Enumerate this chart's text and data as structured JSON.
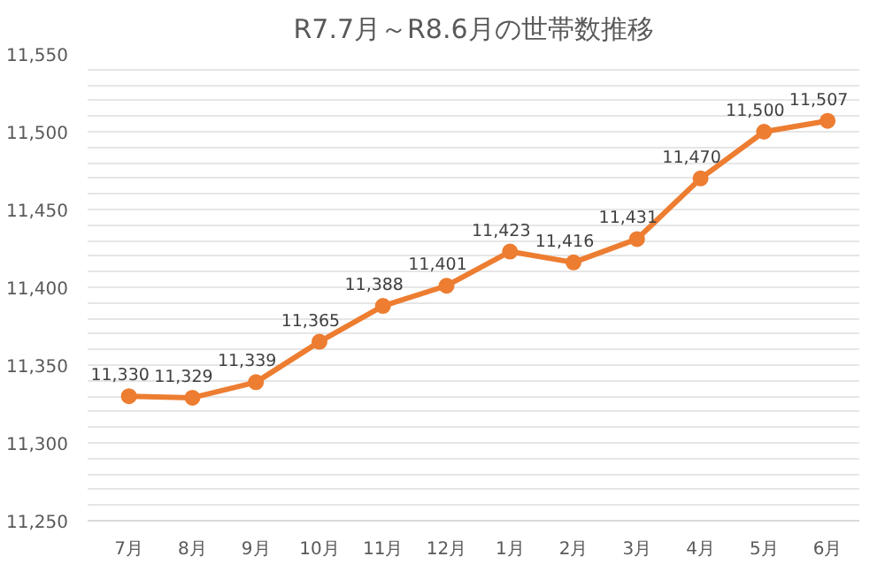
{
  "chart_data": {
    "type": "line",
    "title": "R7.7月～R8.6月の世帯数推移",
    "categories": [
      "7月",
      "8月",
      "9月",
      "10月",
      "11月",
      "12月",
      "1月",
      "2月",
      "3月",
      "4月",
      "5月",
      "6月"
    ],
    "series": [
      {
        "color": "#ed7d31",
        "values": [
          11330,
          11329,
          11339,
          11365,
          11388,
          11401,
          11423,
          11416,
          11431,
          11470,
          11500,
          11507
        ],
        "value_labels": [
          "11,330",
          "11,329",
          "11,339",
          "11,365",
          "11,388",
          "11,401",
          "11,423",
          "11,416",
          "11,431",
          "11,470",
          "11,500",
          "11,507"
        ]
      }
    ],
    "ylim": [
      11250,
      11550
    ],
    "yticks": [
      {
        "value": 11250,
        "label": "11,250"
      },
      {
        "value": 11260,
        "label": null
      },
      {
        "value": 11270,
        "label": null
      },
      {
        "value": 11280,
        "label": null
      },
      {
        "value": 11290,
        "label": null
      },
      {
        "value": 11300,
        "label": "11,300"
      },
      {
        "value": 11310,
        "label": null
      },
      {
        "value": 11320,
        "label": null
      },
      {
        "value": 11330,
        "label": null
      },
      {
        "value": 11340,
        "label": null
      },
      {
        "value": 11350,
        "label": "11,350"
      },
      {
        "value": 11360,
        "label": null
      },
      {
        "value": 11370,
        "label": null
      },
      {
        "value": 11380,
        "label": null
      },
      {
        "value": 11390,
        "label": null
      },
      {
        "value": 11400,
        "label": "11,400"
      },
      {
        "value": 11410,
        "label": null
      },
      {
        "value": 11420,
        "label": null
      },
      {
        "value": 11430,
        "label": null
      },
      {
        "value": 11440,
        "label": null
      },
      {
        "value": 11450,
        "label": "11,450"
      },
      {
        "value": 11460,
        "label": null
      },
      {
        "value": 11470,
        "label": null
      },
      {
        "value": 11480,
        "label": null
      },
      {
        "value": 11490,
        "label": null
      },
      {
        "value": 11500,
        "label": "11,500"
      },
      {
        "value": 11510,
        "label": null
      },
      {
        "value": 11520,
        "label": null
      },
      {
        "value": 11530,
        "label": null
      },
      {
        "value": 11540,
        "label": null
      },
      {
        "value": 11550,
        "label": "11,550"
      }
    ],
    "grid": "y",
    "marker": "circle",
    "line_style": "solid"
  }
}
